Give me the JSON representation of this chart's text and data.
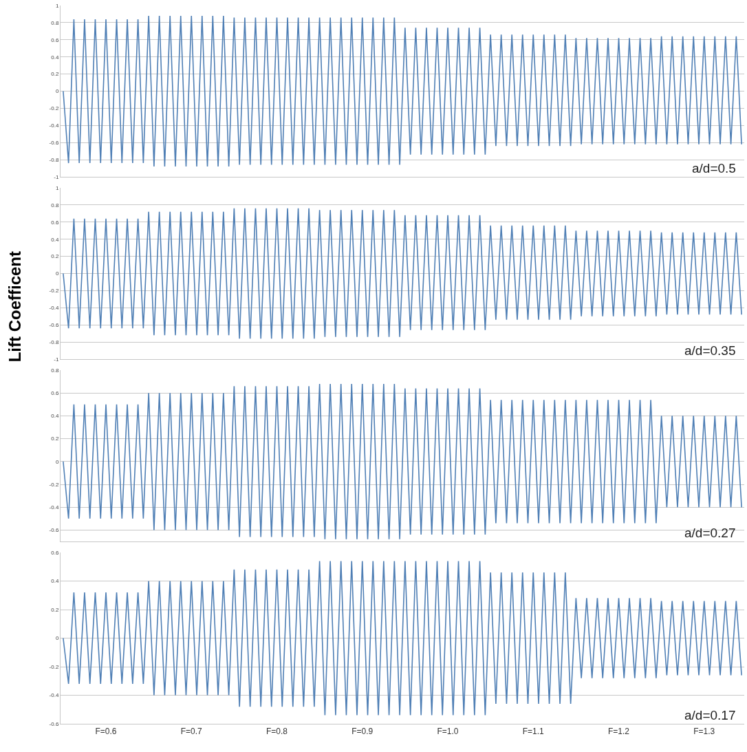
{
  "chart_data": [
    {
      "type": "line",
      "annotations": [
        "a/d=0.5"
      ],
      "grid": "y",
      "tick_labels": "y",
      "marker": "none",
      "line_style": "solid",
      "ylim": [
        -1,
        1
      ],
      "yticks": [
        -1,
        -0.8,
        -0.6,
        -0.4,
        -0.2,
        0,
        0.2,
        0.4,
        0.6,
        0.8,
        1
      ],
      "categories": [
        null,
        null,
        null,
        null,
        null,
        null,
        null,
        null,
        null,
        null,
        null,
        null,
        null,
        null,
        null,
        null,
        null,
        null,
        null,
        null,
        null,
        null,
        null,
        null,
        null,
        null,
        null,
        null,
        null,
        null,
        null,
        null,
        null,
        null,
        null,
        null,
        null,
        null,
        null,
        null,
        null,
        null,
        null,
        null,
        null,
        null,
        null,
        null,
        null,
        null,
        null,
        null,
        null,
        null,
        null,
        null,
        null,
        null,
        null,
        null,
        null,
        null,
        null,
        null,
        null,
        null,
        null,
        null,
        null,
        null,
        null,
        null,
        null,
        null,
        null,
        null,
        null,
        null,
        null,
        null,
        null,
        null,
        null,
        null,
        null,
        null,
        null,
        null,
        null,
        null,
        null,
        null,
        null,
        null,
        null,
        null,
        null,
        null,
        null,
        null,
        null,
        null,
        null,
        null,
        null,
        null,
        null,
        null,
        null,
        null,
        null,
        null,
        null,
        null,
        null,
        null,
        null,
        null,
        null,
        null,
        null,
        null,
        null,
        null,
        null,
        null,
        null,
        null
      ],
      "series": [
        {
          "color": "#4f7fb5",
          "values": [
            0,
            -0.84,
            0.84,
            -0.84,
            0.84,
            -0.84,
            0.84,
            -0.84,
            0.84,
            -0.84,
            0.84,
            -0.84,
            0.84,
            -0.84,
            0.84,
            -0.84,
            0.88,
            -0.88,
            0.88,
            -0.88,
            0.88,
            -0.88,
            0.88,
            -0.88,
            0.88,
            -0.88,
            0.88,
            -0.88,
            0.88,
            -0.88,
            0.88,
            -0.88,
            0.86,
            -0.86,
            0.86,
            -0.86,
            0.86,
            -0.86,
            0.86,
            -0.86,
            0.86,
            -0.86,
            0.86,
            -0.86,
            0.86,
            -0.86,
            0.86,
            -0.86,
            0.86,
            -0.86,
            0.86,
            -0.86,
            0.86,
            -0.86,
            0.86,
            -0.86,
            0.86,
            -0.86,
            0.86,
            -0.86,
            0.86,
            -0.86,
            0.86,
            -0.86,
            0.74,
            -0.74,
            0.74,
            -0.74,
            0.74,
            -0.74,
            0.74,
            -0.74,
            0.74,
            -0.74,
            0.74,
            -0.74,
            0.74,
            -0.74,
            0.74,
            -0.74,
            0.66,
            -0.64,
            0.66,
            -0.64,
            0.66,
            -0.64,
            0.66,
            -0.64,
            0.66,
            -0.64,
            0.66,
            -0.64,
            0.66,
            -0.64,
            0.66,
            -0.64,
            0.62,
            -0.62,
            0.62,
            -0.62,
            0.62,
            -0.62,
            0.62,
            -0.62,
            0.62,
            -0.62,
            0.62,
            -0.62,
            0.62,
            -0.62,
            0.62,
            -0.62,
            0.64,
            -0.62,
            0.64,
            -0.62,
            0.64,
            -0.62,
            0.64,
            -0.62,
            0.64,
            -0.62,
            0.64,
            -0.62,
            0.64,
            -0.62,
            0.64,
            -0.62
          ]
        }
      ]
    },
    {
      "type": "line",
      "ylabel": "Lift Coefficent",
      "annotations": [
        "a/d=0.35"
      ],
      "grid": "y",
      "tick_labels": "y",
      "marker": "none",
      "line_style": "solid",
      "ylim": [
        -1,
        1
      ],
      "yticks": [
        -1,
        -0.8,
        -0.6,
        -0.4,
        -0.2,
        0,
        0.2,
        0.4,
        0.6,
        0.8,
        1
      ],
      "categories": [
        null,
        null,
        null,
        null,
        null,
        null,
        null,
        null,
        null,
        null,
        null,
        null,
        null,
        null,
        null,
        null,
        null,
        null,
        null,
        null,
        null,
        null,
        null,
        null,
        null,
        null,
        null,
        null,
        null,
        null,
        null,
        null,
        null,
        null,
        null,
        null,
        null,
        null,
        null,
        null,
        null,
        null,
        null,
        null,
        null,
        null,
        null,
        null,
        null,
        null,
        null,
        null,
        null,
        null,
        null,
        null,
        null,
        null,
        null,
        null,
        null,
        null,
        null,
        null,
        null,
        null,
        null,
        null,
        null,
        null,
        null,
        null,
        null,
        null,
        null,
        null,
        null,
        null,
        null,
        null,
        null,
        null,
        null,
        null,
        null,
        null,
        null,
        null,
        null,
        null,
        null,
        null,
        null,
        null,
        null,
        null,
        null,
        null,
        null,
        null,
        null,
        null,
        null,
        null,
        null,
        null,
        null,
        null,
        null,
        null,
        null,
        null,
        null,
        null,
        null,
        null,
        null,
        null,
        null,
        null,
        null,
        null,
        null,
        null,
        null,
        null,
        null,
        null
      ],
      "series": [
        {
          "color": "#4f7fb5",
          "values": [
            0,
            -0.64,
            0.64,
            -0.64,
            0.64,
            -0.64,
            0.64,
            -0.64,
            0.64,
            -0.64,
            0.64,
            -0.64,
            0.64,
            -0.64,
            0.64,
            -0.64,
            0.72,
            -0.72,
            0.72,
            -0.72,
            0.72,
            -0.72,
            0.72,
            -0.72,
            0.72,
            -0.72,
            0.72,
            -0.72,
            0.72,
            -0.72,
            0.72,
            -0.72,
            0.76,
            -0.76,
            0.76,
            -0.76,
            0.76,
            -0.76,
            0.76,
            -0.76,
            0.76,
            -0.76,
            0.76,
            -0.76,
            0.76,
            -0.76,
            0.76,
            -0.76,
            0.74,
            -0.74,
            0.74,
            -0.74,
            0.74,
            -0.74,
            0.74,
            -0.74,
            0.74,
            -0.74,
            0.74,
            -0.74,
            0.74,
            -0.74,
            0.74,
            -0.74,
            0.68,
            -0.66,
            0.68,
            -0.66,
            0.68,
            -0.66,
            0.68,
            -0.66,
            0.68,
            -0.66,
            0.68,
            -0.66,
            0.68,
            -0.66,
            0.68,
            -0.66,
            0.56,
            -0.54,
            0.56,
            -0.54,
            0.56,
            -0.54,
            0.56,
            -0.54,
            0.56,
            -0.54,
            0.56,
            -0.54,
            0.56,
            -0.54,
            0.56,
            -0.54,
            0.5,
            -0.5,
            0.5,
            -0.5,
            0.5,
            -0.5,
            0.5,
            -0.5,
            0.5,
            -0.5,
            0.5,
            -0.5,
            0.5,
            -0.5,
            0.5,
            -0.5,
            0.48,
            -0.48,
            0.48,
            -0.48,
            0.48,
            -0.48,
            0.48,
            -0.48,
            0.48,
            -0.48,
            0.48,
            -0.48,
            0.48,
            -0.48,
            0.48,
            -0.48
          ]
        }
      ]
    },
    {
      "type": "line",
      "annotations": [
        "a/d=0.27"
      ],
      "grid": "y",
      "tick_labels": "y",
      "marker": "none",
      "line_style": "solid",
      "ylim": [
        -0.7,
        0.8
      ],
      "yticks": [
        -0.6,
        -0.4,
        -0.2,
        0,
        0.2,
        0.4,
        0.6,
        0.8
      ],
      "categories": [
        null,
        null,
        null,
        null,
        null,
        null,
        null,
        null,
        null,
        null,
        null,
        null,
        null,
        null,
        null,
        null,
        null,
        null,
        null,
        null,
        null,
        null,
        null,
        null,
        null,
        null,
        null,
        null,
        null,
        null,
        null,
        null,
        null,
        null,
        null,
        null,
        null,
        null,
        null,
        null,
        null,
        null,
        null,
        null,
        null,
        null,
        null,
        null,
        null,
        null,
        null,
        null,
        null,
        null,
        null,
        null,
        null,
        null,
        null,
        null,
        null,
        null,
        null,
        null,
        null,
        null,
        null,
        null,
        null,
        null,
        null,
        null,
        null,
        null,
        null,
        null,
        null,
        null,
        null,
        null,
        null,
        null,
        null,
        null,
        null,
        null,
        null,
        null,
        null,
        null,
        null,
        null,
        null,
        null,
        null,
        null,
        null,
        null,
        null,
        null,
        null,
        null,
        null,
        null,
        null,
        null,
        null,
        null,
        null,
        null,
        null,
        null,
        null,
        null,
        null,
        null,
        null,
        null,
        null,
        null,
        null,
        null,
        null,
        null,
        null,
        null,
        null,
        null
      ],
      "series": [
        {
          "color": "#4f7fb5",
          "values": [
            0,
            -0.5,
            0.5,
            -0.5,
            0.5,
            -0.5,
            0.5,
            -0.5,
            0.5,
            -0.5,
            0.5,
            -0.5,
            0.5,
            -0.5,
            0.5,
            -0.5,
            0.6,
            -0.6,
            0.6,
            -0.6,
            0.6,
            -0.6,
            0.6,
            -0.6,
            0.6,
            -0.6,
            0.6,
            -0.6,
            0.6,
            -0.6,
            0.6,
            -0.6,
            0.66,
            -0.66,
            0.66,
            -0.66,
            0.66,
            -0.66,
            0.66,
            -0.66,
            0.66,
            -0.66,
            0.66,
            -0.66,
            0.66,
            -0.66,
            0.66,
            -0.66,
            0.68,
            -0.68,
            0.68,
            -0.68,
            0.68,
            -0.68,
            0.68,
            -0.68,
            0.68,
            -0.68,
            0.68,
            -0.68,
            0.68,
            -0.68,
            0.68,
            -0.68,
            0.64,
            -0.64,
            0.64,
            -0.64,
            0.64,
            -0.64,
            0.64,
            -0.64,
            0.64,
            -0.64,
            0.64,
            -0.64,
            0.64,
            -0.64,
            0.64,
            -0.64,
            0.54,
            -0.54,
            0.54,
            -0.54,
            0.54,
            -0.54,
            0.54,
            -0.54,
            0.54,
            -0.54,
            0.54,
            -0.54,
            0.54,
            -0.54,
            0.54,
            -0.54,
            0.54,
            -0.54,
            0.54,
            -0.54,
            0.54,
            -0.54,
            0.54,
            -0.54,
            0.54,
            -0.54,
            0.54,
            -0.54,
            0.54,
            -0.54,
            0.54,
            -0.54,
            0.4,
            -0.4,
            0.4,
            -0.4,
            0.4,
            -0.4,
            0.4,
            -0.4,
            0.4,
            -0.4,
            0.4,
            -0.4,
            0.4,
            -0.4,
            0.4,
            -0.4
          ]
        }
      ]
    },
    {
      "type": "line",
      "annotations": [
        "a/d=0.17"
      ],
      "grid": "y",
      "marker": "none",
      "line_style": "solid",
      "ylim": [
        -0.6,
        0.6
      ],
      "yticks": [
        -0.6,
        -0.4,
        -0.2,
        0,
        0.2,
        0.4,
        0.6
      ],
      "categories": [
        null,
        null,
        null,
        null,
        null,
        null,
        null,
        null,
        "F=0.6",
        null,
        null,
        null,
        null,
        null,
        null,
        null,
        null,
        null,
        null,
        null,
        null,
        null,
        null,
        null,
        "F=0.7",
        null,
        null,
        null,
        null,
        null,
        null,
        null,
        null,
        null,
        null,
        null,
        null,
        null,
        null,
        null,
        "F=0.8",
        null,
        null,
        null,
        null,
        null,
        null,
        null,
        null,
        null,
        null,
        null,
        null,
        null,
        null,
        null,
        "F=0.9",
        null,
        null,
        null,
        null,
        null,
        null,
        null,
        null,
        null,
        null,
        null,
        null,
        null,
        null,
        null,
        "F=1.0",
        null,
        null,
        null,
        null,
        null,
        null,
        null,
        null,
        null,
        null,
        null,
        null,
        null,
        null,
        null,
        "F=1.1",
        null,
        null,
        null,
        null,
        null,
        null,
        null,
        null,
        null,
        null,
        null,
        null,
        null,
        null,
        null,
        "F=1.2",
        null,
        null,
        null,
        null,
        null,
        null,
        null,
        null,
        null,
        null,
        null,
        null,
        null,
        null,
        null,
        "F=1.3",
        null,
        null,
        null,
        null,
        null,
        null,
        null
      ],
      "series": [
        {
          "color": "#4f7fb5",
          "values": [
            0,
            -0.32,
            0.32,
            -0.32,
            0.32,
            -0.32,
            0.32,
            -0.32,
            0.32,
            -0.32,
            0.32,
            -0.32,
            0.32,
            -0.32,
            0.32,
            -0.32,
            0.4,
            -0.4,
            0.4,
            -0.4,
            0.4,
            -0.4,
            0.4,
            -0.4,
            0.4,
            -0.4,
            0.4,
            -0.4,
            0.4,
            -0.4,
            0.4,
            -0.4,
            0.48,
            -0.48,
            0.48,
            -0.48,
            0.48,
            -0.48,
            0.48,
            -0.48,
            0.48,
            -0.48,
            0.48,
            -0.48,
            0.48,
            -0.48,
            0.48,
            -0.48,
            0.54,
            -0.54,
            0.54,
            -0.54,
            0.54,
            -0.54,
            0.54,
            -0.54,
            0.54,
            -0.54,
            0.54,
            -0.54,
            0.54,
            -0.54,
            0.54,
            -0.54,
            0.54,
            -0.54,
            0.54,
            -0.54,
            0.54,
            -0.54,
            0.54,
            -0.54,
            0.54,
            -0.54,
            0.54,
            -0.54,
            0.54,
            -0.54,
            0.54,
            -0.54,
            0.46,
            -0.46,
            0.46,
            -0.46,
            0.46,
            -0.46,
            0.46,
            -0.46,
            0.46,
            -0.46,
            0.46,
            -0.46,
            0.46,
            -0.46,
            0.46,
            -0.46,
            0.28,
            -0.28,
            0.28,
            -0.28,
            0.28,
            -0.28,
            0.28,
            -0.28,
            0.28,
            -0.28,
            0.28,
            -0.28,
            0.28,
            -0.28,
            0.28,
            -0.28,
            0.26,
            -0.26,
            0.26,
            -0.26,
            0.26,
            -0.26,
            0.26,
            -0.26,
            0.26,
            -0.26,
            0.26,
            -0.26,
            0.26,
            -0.26,
            0.26,
            -0.26
          ]
        }
      ]
    }
  ]
}
